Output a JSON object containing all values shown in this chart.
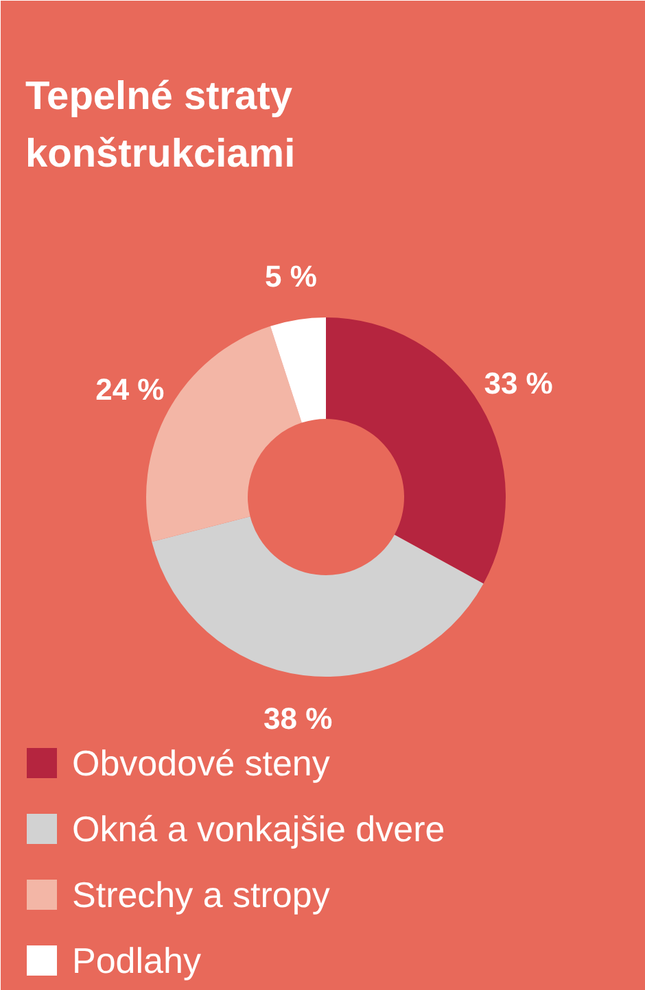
{
  "chart_data": {
    "type": "donut",
    "title": "Tepelné straty\nkonštrukciami",
    "categories": [
      "Obvodové steny",
      "Okná a vonkajšie dvere",
      "Strechy a stropy",
      "Podlahy"
    ],
    "values": [
      33,
      38,
      24,
      5
    ],
    "colors": [
      "#b5253f",
      "#d2d2d2",
      "#f3b6a6",
      "#ffffff"
    ],
    "value_labels": [
      "33 %",
      "38 %",
      "24 %",
      "5 %"
    ],
    "legend": "bottom"
  }
}
